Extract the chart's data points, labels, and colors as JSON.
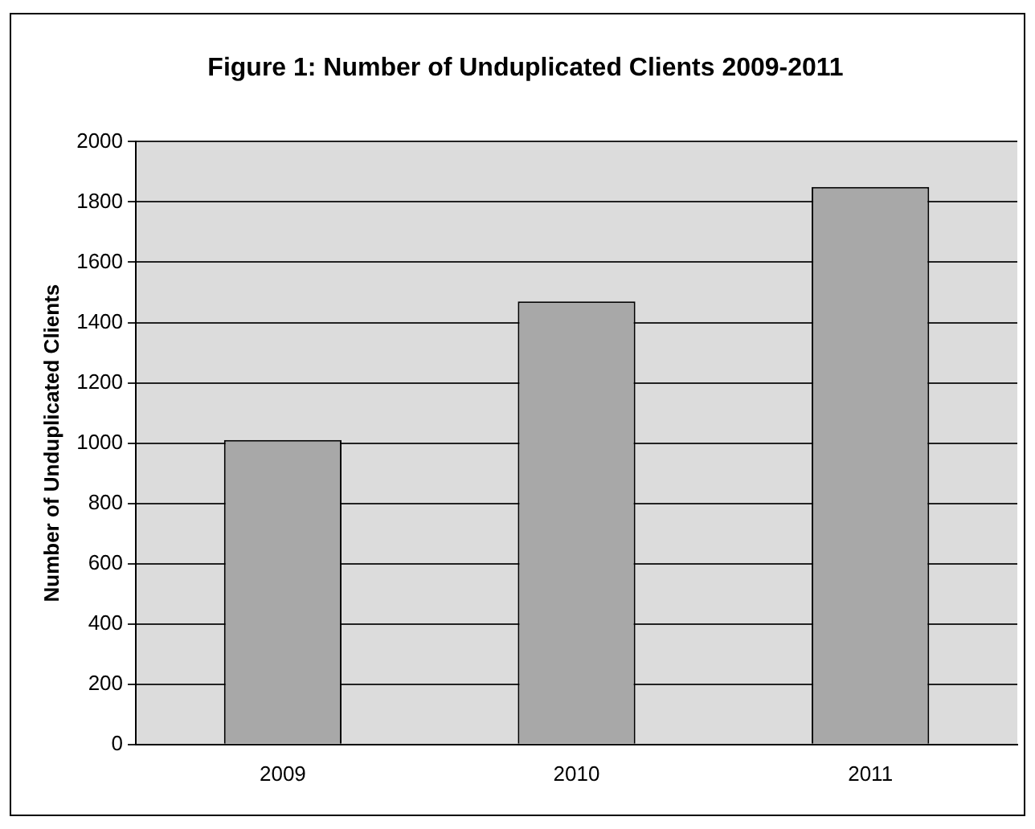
{
  "chart_data": {
    "type": "bar",
    "title": "Figure 1: Number of Unduplicated Clients 2009-2011",
    "ylabel": "Number of Unduplicated Clients",
    "categories": [
      "2009",
      "2010",
      "2011"
    ],
    "values": [
      1010,
      1470,
      1850
    ],
    "color": "#a8a8a8",
    "ylim": [
      0,
      2000
    ],
    "yticks": [
      0,
      200,
      400,
      600,
      800,
      1000,
      1200,
      1400,
      1600,
      1800,
      2000
    ],
    "grid": "y",
    "legend": false
  }
}
